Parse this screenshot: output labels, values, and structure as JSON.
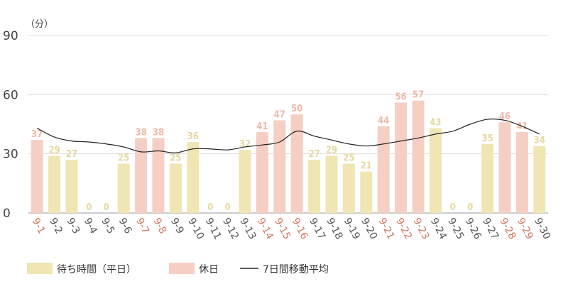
{
  "chart_data": {
    "type": "bar",
    "unit_label": "（分）",
    "ylim": [
      0,
      90
    ],
    "yticks": [
      0,
      30,
      60,
      90
    ],
    "grid": true,
    "categories": [
      "9-1",
      "9-2",
      "9-3",
      "9-4",
      "9-5",
      "9-6",
      "9-7",
      "9-8",
      "9-9",
      "9-10",
      "9-11",
      "9-12",
      "9-13",
      "9-14",
      "9-15",
      "9-16",
      "9-17",
      "9-18",
      "9-19",
      "9-20",
      "9-21",
      "9-22",
      "9-23",
      "9-24",
      "9-25",
      "9-26",
      "9-27",
      "9-28",
      "9-29",
      "9-30"
    ],
    "values": [
      37,
      29,
      27,
      0,
      0,
      25,
      38,
      38,
      25,
      36,
      0,
      0,
      32,
      41,
      47,
      50,
      27,
      29,
      25,
      21,
      44,
      56,
      57,
      43,
      0,
      0,
      35,
      46,
      41,
      34
    ],
    "holiday": [
      true,
      false,
      false,
      false,
      false,
      false,
      true,
      true,
      false,
      false,
      false,
      false,
      false,
      true,
      true,
      true,
      false,
      false,
      false,
      false,
      true,
      true,
      true,
      false,
      false,
      false,
      false,
      true,
      true,
      false
    ],
    "moving_average": {
      "name": "7日間移動平均",
      "values": [
        43,
        38.5,
        36.5,
        36,
        35,
        33.5,
        31,
        31.5,
        30.5,
        32.5,
        32.5,
        32,
        33.5,
        34.5,
        36,
        41.5,
        39,
        37,
        35,
        34,
        35,
        36.5,
        38,
        40,
        41.5,
        45,
        47.5,
        47,
        44,
        40
      ]
    },
    "legend": [
      {
        "label": "待ち時間（平日）",
        "kind": "weekday"
      },
      {
        "label": "休日",
        "kind": "holiday"
      },
      {
        "label": "7日間移動平均",
        "kind": "line"
      }
    ],
    "legend_position": "bottom-left",
    "colors": {
      "weekday_bar": "#f0e6b4",
      "weekday_label": "#e5d8a0",
      "holiday_bar": "#f5cfc3",
      "holiday_label": "#f0b8a8",
      "holiday_tick": "#d1785e",
      "weekday_tick": "#555555",
      "line": "#222222",
      "grid": "#dddddd"
    }
  }
}
